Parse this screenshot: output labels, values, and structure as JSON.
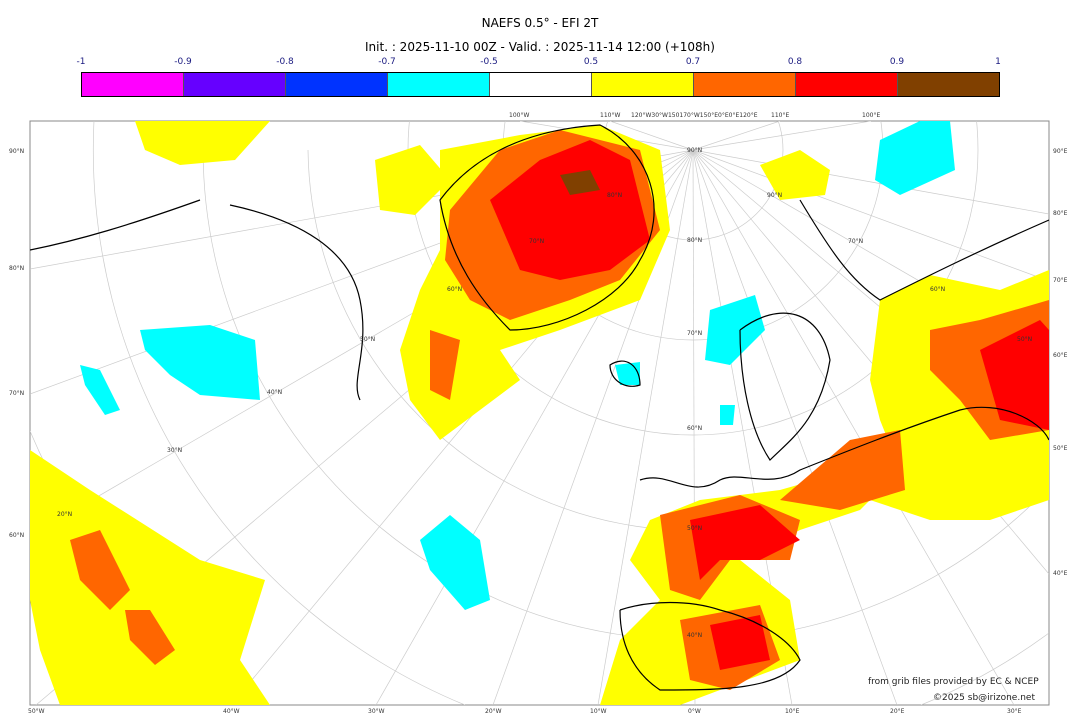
{
  "header": {
    "title": "NAEFS 0.5° - EFI 2T",
    "subtitle": "Init. : 2025-11-10 00Z - Valid. : 2025-11-14 12:00 (+108h)"
  },
  "colorbar": {
    "ticks": [
      "-1",
      "-0.9",
      "-0.8",
      "-0.7",
      "-0.5",
      "0.5",
      "0.7",
      "0.8",
      "0.9",
      "1"
    ],
    "colors": [
      "#ff00ff",
      "#6600ff",
      "#0033ff",
      "#00ffff",
      "#ffffff",
      "#ffff00",
      "#ff6600",
      "#ff0000",
      "#804000"
    ]
  },
  "axes": {
    "bottom": [
      "50°W",
      "40°W",
      "30°W",
      "20°W",
      "10°W",
      "0°W",
      "10°E",
      "20°E",
      "30°E"
    ],
    "left": [
      "90°N",
      "80°N",
      "70°N",
      "60°N"
    ],
    "right": [
      "90°E",
      "80°E",
      "70°E",
      "60°E",
      "50°E",
      "40°E"
    ],
    "top": [
      "100°W",
      "110°W",
      "120°W30°W150170°W150°E0°E0°E120°E",
      "110°E",
      "100°E"
    ],
    "inner": [
      "90°N",
      "80°N",
      "70°N",
      "60°N",
      "50°N",
      "40°N",
      "30°N",
      "20°N",
      "50°N",
      "60°N",
      "70°N",
      "80°N",
      "90°N",
      "60°N",
      "50°N",
      "40°N",
      "70°N",
      "60°N",
      "50°N",
      "80°N"
    ]
  },
  "credits": {
    "source": "from grib files provided by EC & NCEP",
    "copyright": "©2025 sb@irizone.net"
  }
}
